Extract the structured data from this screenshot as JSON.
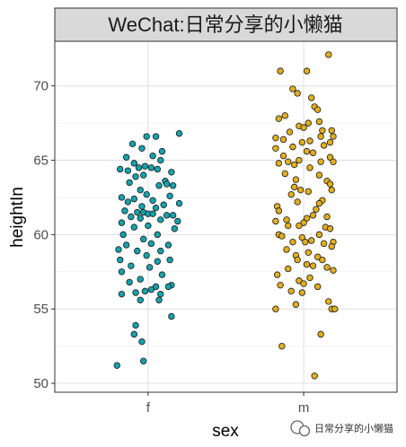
{
  "chart_data": {
    "type": "scatter",
    "title": "WeChat:日常分享的小懒猫",
    "xlabel": "sex",
    "ylabel": "heightIn",
    "categories": [
      "f",
      "m"
    ],
    "ylim": [
      49.4,
      73.0
    ],
    "yticks": [
      50,
      55,
      60,
      65,
      70
    ],
    "grid": true,
    "series": [
      {
        "category": "f",
        "color": "#14a3ad",
        "points": [
          {
            "x": 0.9,
            "y": 66.1
          },
          {
            "x": 0.99,
            "y": 66.6
          },
          {
            "x": 1.05,
            "y": 66.6
          },
          {
            "x": 1.2,
            "y": 66.8
          },
          {
            "x": 0.96,
            "y": 65.8
          },
          {
            "x": 1.09,
            "y": 65.6
          },
          {
            "x": 1.03,
            "y": 65.3
          },
          {
            "x": 0.86,
            "y": 65.2
          },
          {
            "x": 1.08,
            "y": 65.0
          },
          {
            "x": 0.91,
            "y": 64.8
          },
          {
            "x": 0.98,
            "y": 64.6
          },
          {
            "x": 0.94,
            "y": 64.5
          },
          {
            "x": 1.02,
            "y": 64.5
          },
          {
            "x": 1.06,
            "y": 64.4
          },
          {
            "x": 0.82,
            "y": 64.4
          },
          {
            "x": 0.87,
            "y": 64.3
          },
          {
            "x": 1.15,
            "y": 64.2
          },
          {
            "x": 0.97,
            "y": 64.0
          },
          {
            "x": 0.92,
            "y": 63.9
          },
          {
            "x": 1.11,
            "y": 63.6
          },
          {
            "x": 0.88,
            "y": 63.5
          },
          {
            "x": 1.12,
            "y": 63.4
          },
          {
            "x": 1.16,
            "y": 63.3
          },
          {
            "x": 1.07,
            "y": 63.3
          },
          {
            "x": 0.95,
            "y": 63.0
          },
          {
            "x": 0.99,
            "y": 62.7
          },
          {
            "x": 1.14,
            "y": 62.6
          },
          {
            "x": 0.83,
            "y": 62.5
          },
          {
            "x": 0.91,
            "y": 62.4
          },
          {
            "x": 1.03,
            "y": 62.3
          },
          {
            "x": 0.87,
            "y": 62.2
          },
          {
            "x": 1.2,
            "y": 62.1
          },
          {
            "x": 1.1,
            "y": 62.0
          },
          {
            "x": 0.96,
            "y": 61.9
          },
          {
            "x": 1.05,
            "y": 61.8
          },
          {
            "x": 0.85,
            "y": 61.6
          },
          {
            "x": 0.93,
            "y": 61.5
          },
          {
            "x": 0.97,
            "y": 61.5
          },
          {
            "x": 1.0,
            "y": 61.4
          },
          {
            "x": 1.03,
            "y": 61.4
          },
          {
            "x": 1.12,
            "y": 61.3
          },
          {
            "x": 0.89,
            "y": 61.2
          },
          {
            "x": 1.16,
            "y": 61.3
          },
          {
            "x": 0.95,
            "y": 61.1
          },
          {
            "x": 1.08,
            "y": 61.0
          },
          {
            "x": 1.19,
            "y": 60.9
          },
          {
            "x": 0.83,
            "y": 60.8
          },
          {
            "x": 1.0,
            "y": 60.6
          },
          {
            "x": 0.91,
            "y": 60.5
          },
          {
            "x": 1.17,
            "y": 60.4
          },
          {
            "x": 0.84,
            "y": 60.0
          },
          {
            "x": 1.06,
            "y": 60.0
          },
          {
            "x": 0.97,
            "y": 59.7
          },
          {
            "x": 1.02,
            "y": 59.4
          },
          {
            "x": 0.86,
            "y": 59.3
          },
          {
            "x": 1.13,
            "y": 59.3
          },
          {
            "x": 0.81,
            "y": 59.0
          },
          {
            "x": 0.93,
            "y": 58.9
          },
          {
            "x": 1.08,
            "y": 58.9
          },
          {
            "x": 0.99,
            "y": 58.6
          },
          {
            "x": 0.82,
            "y": 58.3
          },
          {
            "x": 1.06,
            "y": 58.2
          },
          {
            "x": 1.14,
            "y": 58.3
          },
          {
            "x": 0.89,
            "y": 57.9
          },
          {
            "x": 1.01,
            "y": 57.8
          },
          {
            "x": 0.83,
            "y": 57.5
          },
          {
            "x": 1.09,
            "y": 57.3
          },
          {
            "x": 0.95,
            "y": 57.0
          },
          {
            "x": 0.88,
            "y": 56.8
          },
          {
            "x": 1.15,
            "y": 56.6
          },
          {
            "x": 1.13,
            "y": 56.5
          },
          {
            "x": 1.02,
            "y": 56.3
          },
          {
            "x": 1.05,
            "y": 56.5
          },
          {
            "x": 0.98,
            "y": 56.2
          },
          {
            "x": 0.92,
            "y": 56.1
          },
          {
            "x": 1.08,
            "y": 56.0
          },
          {
            "x": 0.83,
            "y": 56.0
          },
          {
            "x": 0.95,
            "y": 55.6
          },
          {
            "x": 1.07,
            "y": 55.6
          },
          {
            "x": 1.15,
            "y": 54.5
          },
          {
            "x": 0.92,
            "y": 53.9
          },
          {
            "x": 0.91,
            "y": 53.3
          },
          {
            "x": 0.96,
            "y": 52.8
          },
          {
            "x": 0.97,
            "y": 51.5
          },
          {
            "x": 0.8,
            "y": 51.2
          }
        ]
      },
      {
        "category": "m",
        "color": "#e3ae1d",
        "points": [
          {
            "x": 2.16,
            "y": 72.1
          },
          {
            "x": 1.85,
            "y": 71.0
          },
          {
            "x": 2.02,
            "y": 71.0
          },
          {
            "x": 1.93,
            "y": 69.8
          },
          {
            "x": 1.96,
            "y": 69.5
          },
          {
            "x": 2.05,
            "y": 69.2
          },
          {
            "x": 2.07,
            "y": 68.6
          },
          {
            "x": 2.09,
            "y": 68.4
          },
          {
            "x": 1.88,
            "y": 68.0
          },
          {
            "x": 1.84,
            "y": 67.8
          },
          {
            "x": 2.1,
            "y": 67.6
          },
          {
            "x": 2.03,
            "y": 67.5
          },
          {
            "x": 1.97,
            "y": 67.3
          },
          {
            "x": 2.0,
            "y": 67.2
          },
          {
            "x": 2.12,
            "y": 67.0
          },
          {
            "x": 2.18,
            "y": 67.0
          },
          {
            "x": 1.91,
            "y": 66.9
          },
          {
            "x": 2.11,
            "y": 66.6
          },
          {
            "x": 2.19,
            "y": 66.6
          },
          {
            "x": 1.82,
            "y": 66.5
          },
          {
            "x": 1.87,
            "y": 66.4
          },
          {
            "x": 1.99,
            "y": 66.2
          },
          {
            "x": 2.04,
            "y": 66.3
          },
          {
            "x": 2.17,
            "y": 66.2
          },
          {
            "x": 2.13,
            "y": 66.0
          },
          {
            "x": 1.93,
            "y": 65.9
          },
          {
            "x": 1.82,
            "y": 65.8
          },
          {
            "x": 2.02,
            "y": 65.6
          },
          {
            "x": 2.06,
            "y": 65.5
          },
          {
            "x": 1.87,
            "y": 65.3
          },
          {
            "x": 2.17,
            "y": 65.2
          },
          {
            "x": 1.97,
            "y": 65.0
          },
          {
            "x": 1.9,
            "y": 64.9
          },
          {
            "x": 1.84,
            "y": 64.8
          },
          {
            "x": 2.11,
            "y": 64.9
          },
          {
            "x": 2.19,
            "y": 64.9
          },
          {
            "x": 1.94,
            "y": 64.7
          },
          {
            "x": 2.04,
            "y": 64.5
          },
          {
            "x": 1.88,
            "y": 64.1
          },
          {
            "x": 2.1,
            "y": 64.0
          },
          {
            "x": 1.95,
            "y": 63.7
          },
          {
            "x": 2.15,
            "y": 63.6
          },
          {
            "x": 2.17,
            "y": 63.4
          },
          {
            "x": 1.94,
            "y": 63.2
          },
          {
            "x": 1.98,
            "y": 63.0
          },
          {
            "x": 2.18,
            "y": 63.0
          },
          {
            "x": 2.03,
            "y": 62.9
          },
          {
            "x": 1.92,
            "y": 62.7
          },
          {
            "x": 2.12,
            "y": 62.3
          },
          {
            "x": 1.96,
            "y": 62.2
          },
          {
            "x": 2.1,
            "y": 62.1
          },
          {
            "x": 1.83,
            "y": 61.9
          },
          {
            "x": 1.84,
            "y": 61.6
          },
          {
            "x": 2.08,
            "y": 61.7
          },
          {
            "x": 2.06,
            "y": 61.3
          },
          {
            "x": 2.15,
            "y": 61.2
          },
          {
            "x": 2.02,
            "y": 61.1
          },
          {
            "x": 1.89,
            "y": 61.0
          },
          {
            "x": 1.82,
            "y": 60.9
          },
          {
            "x": 2.0,
            "y": 60.8
          },
          {
            "x": 1.9,
            "y": 60.6
          },
          {
            "x": 1.97,
            "y": 60.6
          },
          {
            "x": 2.14,
            "y": 60.5
          },
          {
            "x": 2.17,
            "y": 60.4
          },
          {
            "x": 1.84,
            "y": 60.0
          },
          {
            "x": 2.1,
            "y": 60.0
          },
          {
            "x": 1.86,
            "y": 59.9
          },
          {
            "x": 1.99,
            "y": 59.8
          },
          {
            "x": 2.05,
            "y": 59.6
          },
          {
            "x": 2.01,
            "y": 59.5
          },
          {
            "x": 1.93,
            "y": 59.5
          },
          {
            "x": 2.19,
            "y": 59.5
          },
          {
            "x": 2.13,
            "y": 59.4
          },
          {
            "x": 2.18,
            "y": 59.2
          },
          {
            "x": 1.89,
            "y": 59.0
          },
          {
            "x": 2.03,
            "y": 58.8
          },
          {
            "x": 1.95,
            "y": 58.6
          },
          {
            "x": 2.09,
            "y": 58.5
          },
          {
            "x": 1.96,
            "y": 58.3
          },
          {
            "x": 2.12,
            "y": 58.3
          },
          {
            "x": 2.02,
            "y": 58.0
          },
          {
            "x": 2.06,
            "y": 57.9
          },
          {
            "x": 1.9,
            "y": 57.7
          },
          {
            "x": 2.15,
            "y": 57.8
          },
          {
            "x": 2.19,
            "y": 57.6
          },
          {
            "x": 1.83,
            "y": 57.3
          },
          {
            "x": 2.04,
            "y": 57.1
          },
          {
            "x": 1.97,
            "y": 56.9
          },
          {
            "x": 2.0,
            "y": 56.7
          },
          {
            "x": 1.85,
            "y": 56.6
          },
          {
            "x": 2.09,
            "y": 56.5
          },
          {
            "x": 1.92,
            "y": 56.2
          },
          {
            "x": 1.99,
            "y": 56.1
          },
          {
            "x": 2.16,
            "y": 55.5
          },
          {
            "x": 1.95,
            "y": 55.3
          },
          {
            "x": 2.18,
            "y": 55.0
          },
          {
            "x": 1.82,
            "y": 55.0
          },
          {
            "x": 2.2,
            "y": 55.0
          },
          {
            "x": 2.11,
            "y": 53.3
          },
          {
            "x": 1.86,
            "y": 52.5
          },
          {
            "x": 2.07,
            "y": 50.5
          }
        ]
      }
    ]
  },
  "watermark": {
    "icon": "wechat-logo-icon",
    "text": "日常分享的小懒猫"
  }
}
